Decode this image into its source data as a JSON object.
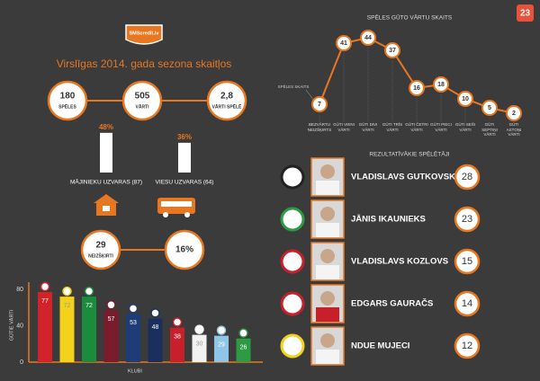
{
  "header": {
    "logo": "SMScredit.lv",
    "title": "Virslīgas 2014. gada sezona skaitļos"
  },
  "page_number": "23",
  "stats": [
    {
      "value": "180",
      "label": "SPĒLES"
    },
    {
      "value": "505",
      "label": "VĀRTI"
    },
    {
      "value": "2,8",
      "label": "VĀRTI SPĒLĒ"
    }
  ],
  "wins": {
    "categories": [
      "MĀJINIEKU UZVARAS (87)",
      "VIESU UZVARAS (64)"
    ],
    "values": [
      48,
      36
    ],
    "value_labels": [
      "48%",
      "36%"
    ]
  },
  "draws": [
    {
      "value": "29",
      "label": "NEIZŠĶIRTI"
    },
    {
      "value": "16%"
    }
  ],
  "chart_data": [
    {
      "type": "line",
      "title": "SPĒLES GŪTO VĀRTU SKAITS",
      "annotation": "SPĒLES SKAITS",
      "color": "#e87722",
      "categories": [
        "BEZVĀRTU NEIZŠĶIRTS",
        "GŪTI VIENI VĀRTI",
        "GŪTI DIVI VĀRTI",
        "GŪTI TRĪS VĀRTI",
        "GŪTI ČETRI VĀRTI",
        "GŪTI PIECI VĀRTI",
        "GŪTI SEŠI VĀRTI",
        "GŪTI SEPTIŅI VĀRTI",
        "GŪTI ASTOŅI VĀRTI"
      ],
      "values": [
        7,
        41,
        44,
        37,
        16,
        18,
        10,
        5,
        2
      ]
    },
    {
      "type": "bar",
      "y_label": "GŪTIE VĀRTI",
      "x_label": "KLUBI",
      "categories": [
        null,
        null,
        null,
        null,
        null,
        null,
        null,
        null,
        null,
        null
      ],
      "values": [
        77,
        72,
        72,
        57,
        53,
        48,
        38,
        30,
        29,
        26
      ],
      "colors": [
        "#d2232a",
        "#f2d21b",
        "#1a8c3c",
        "#7a1c2c",
        "#1d3c78",
        "#1b2f5e",
        "#c8202a",
        "#f2f2f2",
        "#8fc6e8",
        "#2e9a44"
      ],
      "ylim": [
        0,
        80
      ],
      "yticks": [
        0,
        40,
        80
      ]
    }
  ],
  "players": {
    "title": "REZULTATĪVĀKIE SPĒLĒTĀJI",
    "rows": [
      {
        "name": "VLADISLAVS GUTKOVSKIS",
        "goals": "28"
      },
      {
        "name": "JĀNIS IKAUNIEKS",
        "goals": "23"
      },
      {
        "name": "VLADISLAVS KOZLOVS",
        "goals": "15"
      },
      {
        "name": "EDGARS GAURAČS",
        "goals": "14"
      },
      {
        "name": "NDUE MUJECI",
        "goals": "12"
      }
    ]
  }
}
